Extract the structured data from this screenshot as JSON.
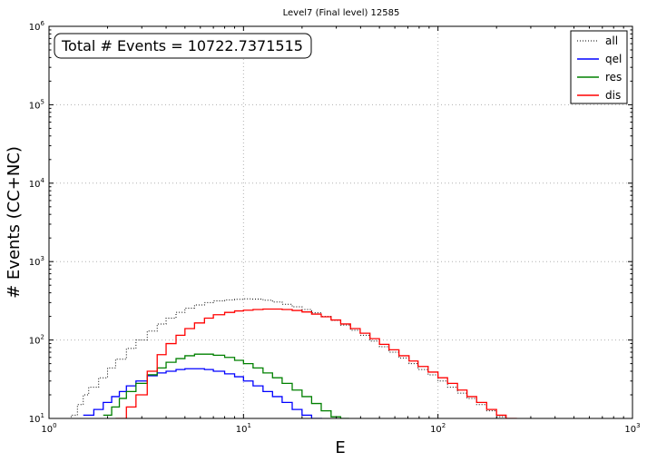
{
  "chart_data": {
    "type": "line",
    "title": "Level7 (Final level) 12585",
    "xlabel": "E",
    "ylabel": "# Events (CC+NC)",
    "xscale": "log",
    "yscale": "log",
    "xlim": [
      1,
      1000
    ],
    "ylim": [
      10,
      1000000
    ],
    "grid": true,
    "legend_placement": "top-right",
    "x_ticks": [
      {
        "value": 1,
        "base": "10",
        "exp": "0"
      },
      {
        "value": 10,
        "base": "10",
        "exp": "1"
      },
      {
        "value": 100,
        "base": "10",
        "exp": "2"
      },
      {
        "value": 1000,
        "base": "10",
        "exp": "3"
      }
    ],
    "y_ticks": [
      {
        "value": 10,
        "base": "10",
        "exp": "1"
      },
      {
        "value": 100,
        "base": "10",
        "exp": "2"
      },
      {
        "value": 1000,
        "base": "10",
        "exp": "3"
      },
      {
        "value": 10000,
        "base": "10",
        "exp": "4"
      },
      {
        "value": 100000,
        "base": "10",
        "exp": "5"
      },
      {
        "value": 1000000,
        "base": "10",
        "exp": "6"
      }
    ],
    "annotation": "Total # Events = 10722.7371515",
    "series": [
      {
        "name": "all",
        "color": "#000000",
        "style": "dotted",
        "points": [
          [
            1.2,
            8
          ],
          [
            1.3,
            11
          ],
          [
            1.4,
            15
          ],
          [
            1.5,
            20
          ],
          [
            1.6,
            25
          ],
          [
            1.8,
            33
          ],
          [
            2.0,
            44
          ],
          [
            2.2,
            57
          ],
          [
            2.5,
            78
          ],
          [
            2.8,
            100
          ],
          [
            3.2,
            130
          ],
          [
            3.6,
            160
          ],
          [
            4.0,
            190
          ],
          [
            4.5,
            225
          ],
          [
            5.0,
            255
          ],
          [
            5.6,
            280
          ],
          [
            6.3,
            300
          ],
          [
            7.0,
            315
          ],
          [
            8.0,
            325
          ],
          [
            9.0,
            330
          ],
          [
            10,
            335
          ],
          [
            11,
            333
          ],
          [
            12.6,
            322
          ],
          [
            14.1,
            305
          ],
          [
            15.8,
            285
          ],
          [
            17.8,
            265
          ],
          [
            20,
            245
          ],
          [
            22.4,
            222
          ],
          [
            25.1,
            200
          ],
          [
            28.2,
            178
          ],
          [
            31.6,
            155
          ],
          [
            35.5,
            133
          ],
          [
            39.8,
            115
          ],
          [
            44.7,
            97
          ],
          [
            50,
            82
          ],
          [
            56,
            70
          ],
          [
            63,
            59
          ],
          [
            71,
            50
          ],
          [
            79,
            42
          ],
          [
            89,
            36
          ],
          [
            100,
            30
          ],
          [
            112,
            25
          ],
          [
            126,
            21
          ],
          [
            141,
            18
          ],
          [
            158,
            15
          ],
          [
            178,
            12.5
          ],
          [
            200,
            10.5
          ],
          [
            224,
            8.5
          ]
        ]
      },
      {
        "name": "qel",
        "color": "#0000ff",
        "style": "solid",
        "points": [
          [
            1.5,
            11
          ],
          [
            1.7,
            13
          ],
          [
            1.9,
            16
          ],
          [
            2.1,
            19
          ],
          [
            2.3,
            22
          ],
          [
            2.5,
            26
          ],
          [
            2.8,
            30
          ],
          [
            3.2,
            35
          ],
          [
            3.6,
            38
          ],
          [
            4.0,
            40
          ],
          [
            4.5,
            42
          ],
          [
            5.0,
            43
          ],
          [
            5.6,
            43
          ],
          [
            6.3,
            42
          ],
          [
            7.0,
            40
          ],
          [
            8.0,
            37
          ],
          [
            9.0,
            34
          ],
          [
            10,
            30
          ],
          [
            11.2,
            26
          ],
          [
            12.6,
            22
          ],
          [
            14.1,
            19
          ],
          [
            15.8,
            16
          ],
          [
            17.8,
            13
          ],
          [
            20,
            11
          ],
          [
            22.4,
            9
          ]
        ]
      },
      {
        "name": "res",
        "color": "#008000",
        "style": "solid",
        "points": [
          [
            1.9,
            11
          ],
          [
            2.1,
            14
          ],
          [
            2.3,
            18
          ],
          [
            2.5,
            22
          ],
          [
            2.8,
            28
          ],
          [
            3.2,
            36
          ],
          [
            3.6,
            44
          ],
          [
            4.0,
            52
          ],
          [
            4.5,
            58
          ],
          [
            5.0,
            63
          ],
          [
            5.6,
            66
          ],
          [
            6.3,
            66
          ],
          [
            7.0,
            64
          ],
          [
            8.0,
            60
          ],
          [
            9.0,
            55
          ],
          [
            10,
            50
          ],
          [
            11.2,
            44
          ],
          [
            12.6,
            38
          ],
          [
            14.1,
            33
          ],
          [
            15.8,
            28
          ],
          [
            17.8,
            23
          ],
          [
            20,
            19
          ],
          [
            22.4,
            15.5
          ],
          [
            25.1,
            12.5
          ],
          [
            28.2,
            10.5
          ],
          [
            31.6,
            9
          ]
        ]
      },
      {
        "name": "dis",
        "color": "#ff0000",
        "style": "solid",
        "points": [
          [
            2.2,
            10
          ],
          [
            2.5,
            14
          ],
          [
            2.8,
            20
          ],
          [
            3.2,
            40
          ],
          [
            3.6,
            65
          ],
          [
            4.0,
            90
          ],
          [
            4.5,
            115
          ],
          [
            5.0,
            140
          ],
          [
            5.6,
            165
          ],
          [
            6.3,
            190
          ],
          [
            7.0,
            210
          ],
          [
            8.0,
            225
          ],
          [
            9.0,
            235
          ],
          [
            10,
            240
          ],
          [
            11.2,
            245
          ],
          [
            12.6,
            248
          ],
          [
            14.1,
            248
          ],
          [
            15.8,
            245
          ],
          [
            17.8,
            238
          ],
          [
            20,
            228
          ],
          [
            22.4,
            214
          ],
          [
            25.1,
            198
          ],
          [
            28.2,
            180
          ],
          [
            31.6,
            160
          ],
          [
            35.5,
            140
          ],
          [
            39.8,
            122
          ],
          [
            44.7,
            104
          ],
          [
            50,
            88
          ],
          [
            56,
            75
          ],
          [
            63,
            63
          ],
          [
            71,
            54
          ],
          [
            79,
            46
          ],
          [
            89,
            39
          ],
          [
            100,
            33
          ],
          [
            112,
            28
          ],
          [
            126,
            23
          ],
          [
            141,
            19
          ],
          [
            158,
            16
          ],
          [
            178,
            13
          ],
          [
            200,
            11
          ],
          [
            224,
            9
          ]
        ]
      }
    ]
  }
}
